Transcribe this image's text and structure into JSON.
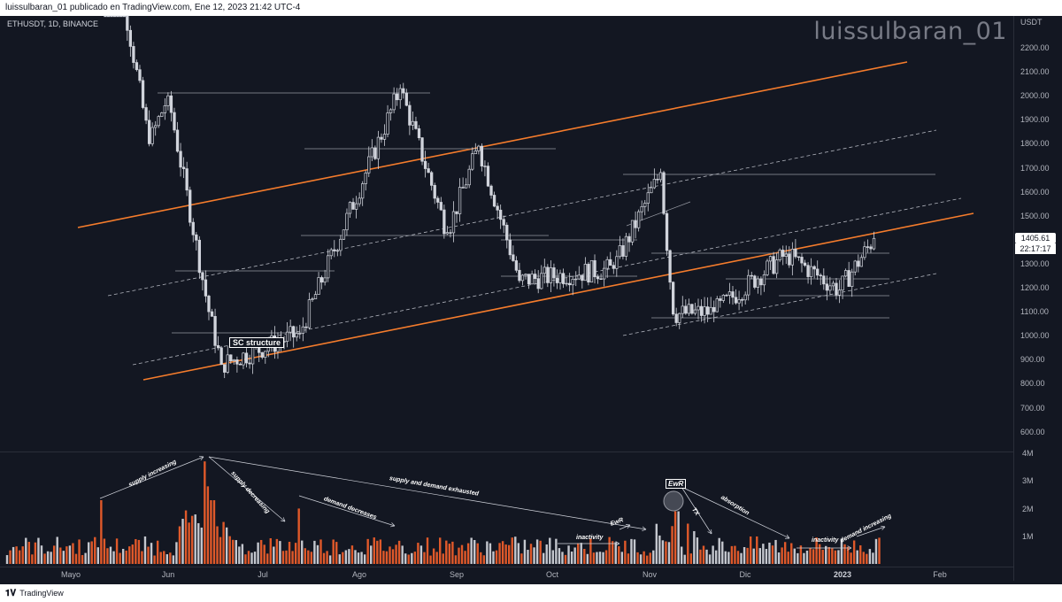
{
  "header": {
    "publish_text": "luissulbaran_01 publicado en TradingView.com, Ene 12, 2023 21:42 UTC-4"
  },
  "symbol": {
    "label": "ETHUSDT, 1D, BINANCE"
  },
  "watermark": "luissulbaran_01",
  "price_axis": {
    "currency": "USDT",
    "ticks": [
      "2200.00",
      "2100.00",
      "2000.00",
      "1900.00",
      "1800.00",
      "1700.00",
      "1600.00",
      "1500.00",
      "1400.00",
      "1300.00",
      "1200.00",
      "1100.00",
      "1000.00",
      "900.00",
      "800.00",
      "700.00",
      "600.00"
    ],
    "last_price": "1405.61",
    "countdown": "22:17:17"
  },
  "volume_axis": {
    "ticks": [
      "4M",
      "3M",
      "2M",
      "1M"
    ]
  },
  "time_axis": {
    "ticks": [
      {
        "label": "Mayo",
        "bold": false
      },
      {
        "label": "Jun",
        "bold": false
      },
      {
        "label": "Jul",
        "bold": false
      },
      {
        "label": "Ago",
        "bold": false
      },
      {
        "label": "Sep",
        "bold": false
      },
      {
        "label": "Oct",
        "bold": false
      },
      {
        "label": "Nov",
        "bold": false
      },
      {
        "label": "Dic",
        "bold": false
      },
      {
        "label": "2023",
        "bold": true
      },
      {
        "label": "Feb",
        "bold": false
      }
    ]
  },
  "annotations": {
    "sc_structure": "SC structure",
    "ewr": "EwR",
    "ewr_small": "EwR",
    "supply_increasing": "supply increasing",
    "supply_decreasing": "supply decreasing",
    "demand_decreases": "demand decreases",
    "supply_demand_exhausted": "supply and demand exhausted",
    "inactivity_1": "inactivity",
    "inactivity_2": "inactivity",
    "tx": "TX",
    "absorption": "absorption",
    "demand_increasing": "demand increasing"
  },
  "colors": {
    "background": "#131722",
    "bullish_candle": "#d1d4dc",
    "channel": "#f57c2c",
    "dashed": "#b2b5be",
    "volume_down": "#e0592a",
    "volume_up": "#c4c7ce"
  },
  "footer": {
    "brand": "TradingView"
  },
  "chart_data": {
    "type": "candlestick",
    "symbol": "ETHUSDT",
    "interval": "1D",
    "exchange": "BINANCE",
    "price_range": [
      550,
      2300
    ],
    "last_price": 1405.61,
    "swing_points": [
      {
        "date": "2022-05-11",
        "price": 2900
      },
      {
        "date": "2022-05-26",
        "price": 1800
      },
      {
        "date": "2022-06-01",
        "price": 2000
      },
      {
        "date": "2022-06-14",
        "price": 1100
      },
      {
        "date": "2022-06-18",
        "price": 880
      },
      {
        "date": "2022-07-13",
        "price": 1010
      },
      {
        "date": "2022-08-14",
        "price": 2030
      },
      {
        "date": "2022-08-29",
        "price": 1430
      },
      {
        "date": "2022-09-08",
        "price": 1790
      },
      {
        "date": "2022-09-21",
        "price": 1230
      },
      {
        "date": "2022-10-21",
        "price": 1280
      },
      {
        "date": "2022-11-05",
        "price": 1680
      },
      {
        "date": "2022-11-09",
        "price": 1090
      },
      {
        "date": "2022-11-22",
        "price": 1100
      },
      {
        "date": "2022-12-15",
        "price": 1340
      },
      {
        "date": "2023-01-01",
        "price": 1190
      },
      {
        "date": "2023-01-12",
        "price": 1405.61
      }
    ]
  }
}
